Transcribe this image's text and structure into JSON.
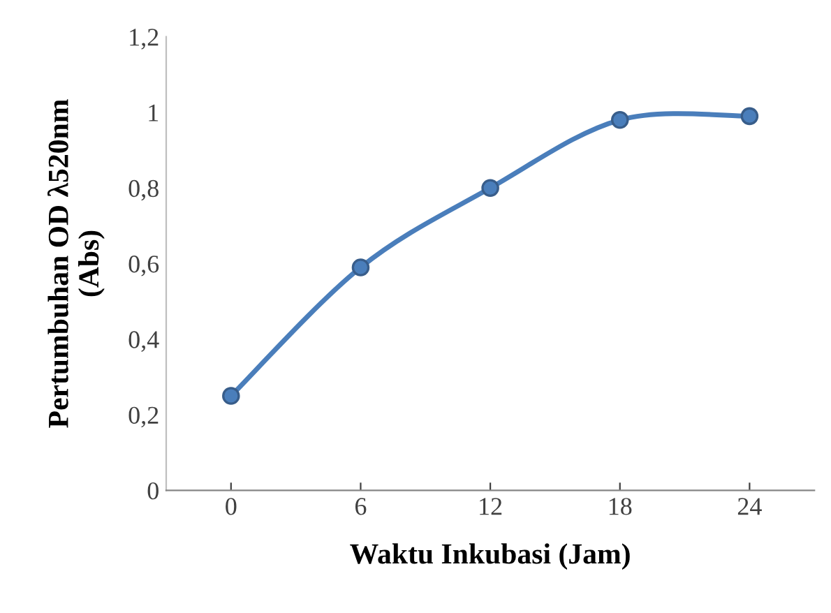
{
  "chart_data": {
    "type": "line",
    "xlabel": "Waktu Inkubasi (Jam)",
    "ylabel": "Pertumbuhan OD λ520nm\n(Abs)",
    "categories": [
      "0",
      "6",
      "12",
      "18",
      "24"
    ],
    "series": [
      {
        "color": "#4a7ebb",
        "values": [
          0.25,
          0.59,
          0.8,
          0.98,
          0.99
        ]
      }
    ],
    "ylim": [
      0,
      1.2
    ],
    "yticks": [
      0,
      {
        "value": 0.2,
        "label": "0,2"
      },
      {
        "value": 0.4,
        "label": "0,4"
      },
      {
        "value": 0.6,
        "label": "0,6"
      },
      {
        "value": 0.8,
        "label": "0,8"
      },
      1,
      {
        "value": 1.2,
        "label": "1,2"
      }
    ],
    "grid": false,
    "legend": false,
    "marker": "circle",
    "line_style": "solid"
  }
}
